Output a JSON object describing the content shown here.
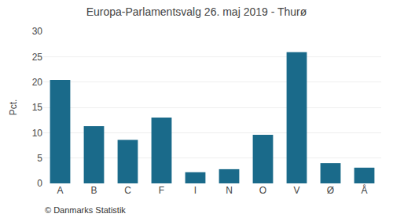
{
  "chart_data": {
    "type": "bar",
    "title": "Europa-Parlamentsvalg 26. maj 2019 - Thurø",
    "categories": [
      "A",
      "B",
      "C",
      "F",
      "I",
      "N",
      "O",
      "V",
      "Ø",
      "Å"
    ],
    "values": [
      20.4,
      11.3,
      8.6,
      13.0,
      2.2,
      2.8,
      9.6,
      25.9,
      4.0,
      3.1
    ],
    "color": "#1a6a8a",
    "ylabel": "Pct.",
    "ylim": [
      0,
      30
    ],
    "yticks": [
      0,
      5,
      10,
      15,
      20,
      25,
      30
    ],
    "grid": true,
    "annotations": [
      "© Danmarks Statistik"
    ]
  }
}
